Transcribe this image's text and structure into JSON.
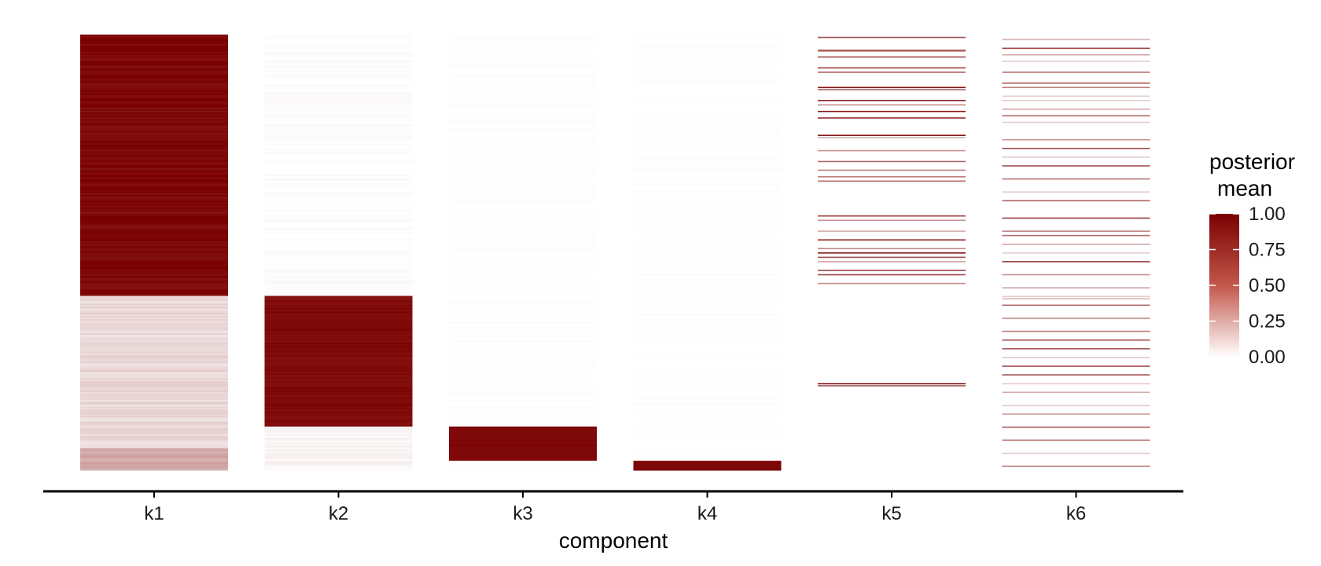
{
  "chart_data": {
    "type": "heatmap",
    "xlabel": "component",
    "ylabel": "",
    "title": "",
    "categories": [
      "k1",
      "k2",
      "k3",
      "k4",
      "k5",
      "k6"
    ],
    "legend": {
      "title_lines": [
        "posterior",
        "mean"
      ],
      "ticks": [
        "1.00",
        "0.75",
        "0.50",
        "0.25",
        "0.00"
      ],
      "tick_values": [
        1.0,
        0.75,
        0.5,
        0.25,
        0.0
      ],
      "range": [
        0,
        1
      ],
      "placement": "right",
      "color_low": "#ffffff",
      "color_high": "#7a0000"
    },
    "grid": false,
    "segments": [
      {
        "component": "k1",
        "from": 0.0,
        "to": 0.6,
        "mean": 0.97,
        "noise": 0.05
      },
      {
        "component": "k1",
        "from": 0.6,
        "to": 0.95,
        "mean": 0.15,
        "noise": 0.05
      },
      {
        "component": "k1",
        "from": 0.95,
        "to": 1.0,
        "mean": 0.35,
        "noise": 0.05
      },
      {
        "component": "k2",
        "from": 0.0,
        "to": 0.6,
        "mean": 0.01,
        "noise": 0.02
      },
      {
        "component": "k2",
        "from": 0.6,
        "to": 0.9,
        "mean": 0.96,
        "noise": 0.03
      },
      {
        "component": "k2",
        "from": 0.9,
        "to": 1.0,
        "mean": 0.04,
        "noise": 0.03
      },
      {
        "component": "k3",
        "from": 0.0,
        "to": 0.9,
        "mean": 0.005,
        "noise": 0.01
      },
      {
        "component": "k3",
        "from": 0.9,
        "to": 0.98,
        "mean": 0.97,
        "noise": 0.02
      },
      {
        "component": "k3",
        "from": 0.98,
        "to": 1.0,
        "mean": 0.01,
        "noise": 0.01
      },
      {
        "component": "k4",
        "from": 0.0,
        "to": 0.98,
        "mean": 0.003,
        "noise": 0.01
      },
      {
        "component": "k4",
        "from": 0.98,
        "to": 1.0,
        "mean": 0.98,
        "noise": 0.02
      },
      {
        "component": "k5",
        "from": 0.0,
        "to": 1.0,
        "mean": 0.0,
        "noise": 0.0
      },
      {
        "component": "k6",
        "from": 0.0,
        "to": 1.0,
        "mean": 0.0,
        "noise": 0.0
      }
    ],
    "sparse_lines": [
      {
        "component": "k5",
        "rows": [
          0.005,
          0.035,
          0.037,
          0.05,
          0.075,
          0.085,
          0.12,
          0.125,
          0.15,
          0.16,
          0.175,
          0.19,
          0.23,
          0.235,
          0.265,
          0.29,
          0.31,
          0.325,
          0.335,
          0.415,
          0.425,
          0.45,
          0.47,
          0.49,
          0.5,
          0.51,
          0.52,
          0.54,
          0.55,
          0.57,
          0.8,
          0.805
        ],
        "mean": 0.6
      },
      {
        "component": "k6",
        "rows": [
          0.01,
          0.03,
          0.045,
          0.06,
          0.085,
          0.11,
          0.12,
          0.14,
          0.15,
          0.17,
          0.185,
          0.2,
          0.24,
          0.26,
          0.28,
          0.3,
          0.33,
          0.36,
          0.38,
          0.42,
          0.45,
          0.46,
          0.48,
          0.5,
          0.52,
          0.55,
          0.58,
          0.6,
          0.605,
          0.62,
          0.65,
          0.68,
          0.7,
          0.72,
          0.74,
          0.76,
          0.78,
          0.8,
          0.82,
          0.85,
          0.87,
          0.9,
          0.93,
          0.96,
          0.99
        ],
        "mean": 0.45
      }
    ]
  }
}
